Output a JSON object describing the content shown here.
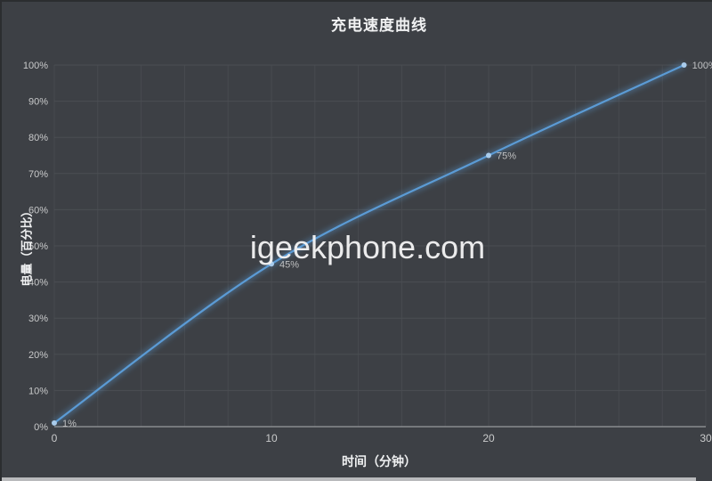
{
  "title": "充电速度曲线",
  "watermark": "igeekphone.com",
  "axes": {
    "x_title": "时间（分钟）",
    "y_title": "电量（百分比）"
  },
  "chart_data": {
    "type": "line",
    "title": "充电速度曲线",
    "xlabel": "时间（分钟）",
    "ylabel": "电量（百分比）",
    "x": [
      0,
      10,
      20,
      29
    ],
    "values": [
      1,
      45,
      75,
      100
    ],
    "point_labels": [
      "1%",
      "45%",
      "75%",
      "100%"
    ],
    "xlim": [
      0,
      30
    ],
    "ylim": [
      0,
      100
    ],
    "x_major_ticks": [
      0,
      10,
      20,
      30
    ],
    "x_minor_step": 2,
    "y_major_step": 10,
    "y_tick_suffix": "%",
    "grid": true,
    "legend": false,
    "smooth": true,
    "line_color": "#5B9BD5",
    "marker_color": "#A9CCEC"
  },
  "colors": {
    "background": "#3D4045",
    "gridline": "#4B4E53",
    "axis_line": "#8A8C8F",
    "tick_label": "#C9CACB",
    "title_text": "#F0F1F2",
    "data_label": "#BFC0C2",
    "watermark": "#F5F5F5"
  }
}
